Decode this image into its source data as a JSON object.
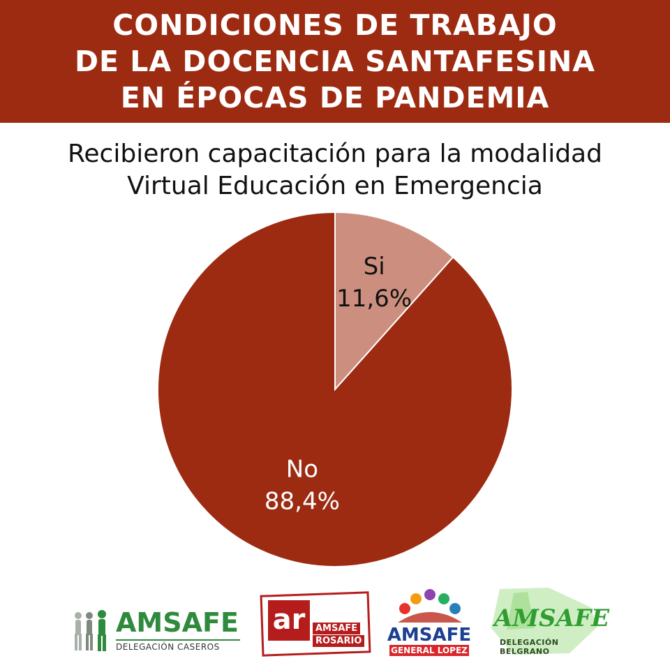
{
  "header": {
    "lines": [
      "CONDICIONES DE TRABAJO",
      "DE LA DOCENCIA SANTAFESINA",
      "EN ÉPOCAS DE PANDEMIA"
    ],
    "background_color": "#9c2b12"
  },
  "chart_data": {
    "type": "pie",
    "title_lines": [
      "Recibieron capacitación para la modalidad",
      "Virtual Educación en Emergencia"
    ],
    "slices": [
      {
        "label": "Si",
        "value": 11.6,
        "value_label": "11,6%",
        "color": "#cc8f7f",
        "text_color": "#111111"
      },
      {
        "label": "No",
        "value": 88.4,
        "value_label": "88,4%",
        "color": "#9c2b12",
        "text_color": "#ffffff"
      }
    ],
    "start_angle": "top, clockwise",
    "legend": "none"
  },
  "logos": {
    "caseros": {
      "name": "AMSAFE",
      "sub": "DELEGACIÓN CASEROS",
      "color": "#2e8b3e"
    },
    "rosario": {
      "mark": "ar",
      "line1": "AMSAFE",
      "line2": "ROSARIO",
      "color": "#b51c1c"
    },
    "general_lopez": {
      "name": "AMSAFE",
      "sub": "GENERAL LOPEZ",
      "name_color": "#1d3f91",
      "sub_color": "#d8262b"
    },
    "belgrano": {
      "name": "AMSAFE",
      "sub": "DELEGACIÓN BELGRANO",
      "color": "#2f9e2f"
    }
  }
}
